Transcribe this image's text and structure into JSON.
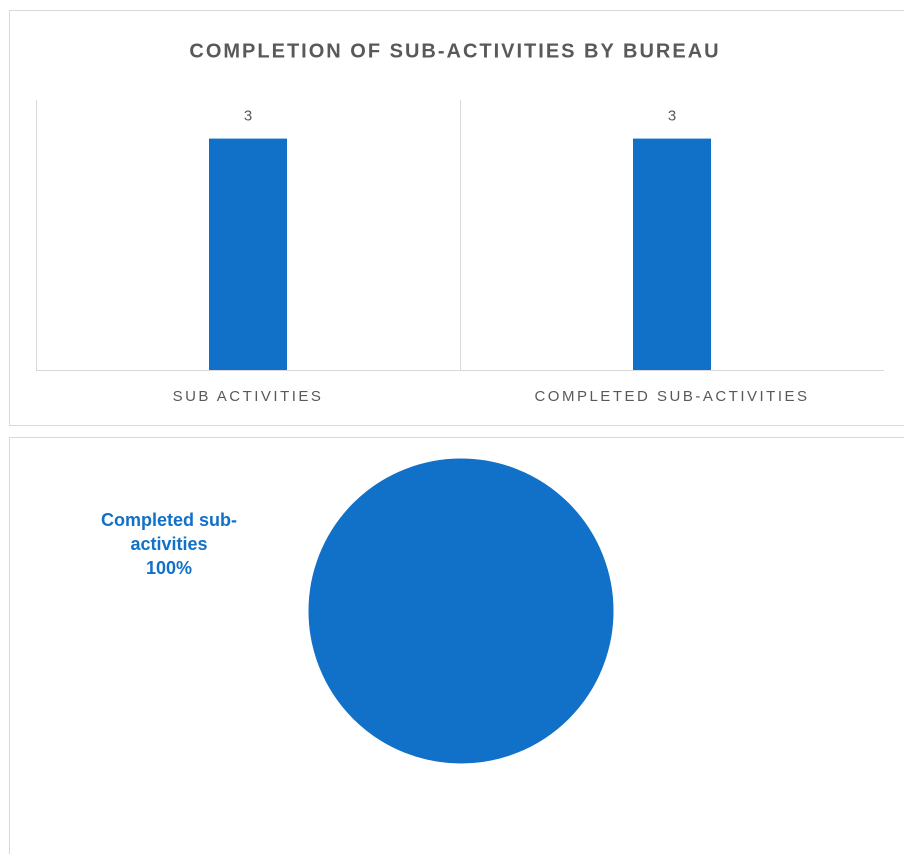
{
  "chart_data": [
    {
      "type": "bar",
      "title": "COMPLETION OF SUB-ACTIVITIES BY BUREAU",
      "categories": [
        "SUB ACTIVITIES",
        "COMPLETED SUB-ACTIVITIES"
      ],
      "values": [
        3,
        3
      ],
      "color": "#1170c8",
      "ylim": [
        0,
        3.5
      ]
    },
    {
      "type": "pie",
      "categories": [
        "Completed sub-activities"
      ],
      "values": [
        100
      ],
      "value_labels": [
        "100%"
      ],
      "colors": [
        "#1170c8"
      ]
    }
  ]
}
